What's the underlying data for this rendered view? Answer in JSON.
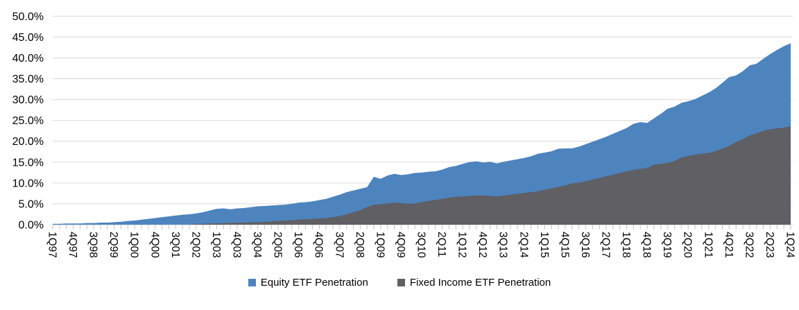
{
  "chart_data": {
    "type": "area",
    "overlapping": true,
    "title": "",
    "xlabel": "",
    "ylabel": "",
    "y_axis": {
      "min": 0,
      "max": 50,
      "step": 5,
      "tick_labels": [
        "0.0%",
        "5.0%",
        "10.0%",
        "15.0%",
        "20.0%",
        "25.0%",
        "30.0%",
        "35.0%",
        "40.0%",
        "45.0%",
        "50.0%"
      ]
    },
    "x_axis": {
      "start": "1Q97",
      "end": "1Q24",
      "n_points": 109,
      "label_every_n_quarters": 3,
      "tick_labels": [
        "1Q97",
        "4Q97",
        "3Q98",
        "2Q99",
        "1Q00",
        "4Q00",
        "3Q01",
        "2Q02",
        "1Q03",
        "4Q03",
        "3Q04",
        "2Q05",
        "1Q06",
        "4Q06",
        "3Q07",
        "2Q08",
        "1Q09",
        "4Q09",
        "3Q10",
        "2Q11",
        "1Q12",
        "4Q12",
        "3Q13",
        "2Q14",
        "1Q15",
        "4Q15",
        "3Q16",
        "2Q17",
        "1Q18",
        "4Q18",
        "3Q19",
        "2Q20",
        "1Q21",
        "4Q21",
        "3Q22",
        "2Q23",
        "1Q24"
      ]
    },
    "grid": true,
    "gridline_color": "#D9D9D9",
    "tick_color": "#BFBFBF",
    "legend_position": "bottom",
    "series": [
      {
        "name": "Equity ETF Penetration",
        "color": "#4D84BE",
        "values": [
          0.2,
          0.2,
          0.3,
          0.3,
          0.3,
          0.4,
          0.4,
          0.5,
          0.5,
          0.6,
          0.7,
          0.9,
          1.0,
          1.2,
          1.4,
          1.6,
          1.8,
          2.0,
          2.2,
          2.4,
          2.5,
          2.7,
          3.0,
          3.4,
          3.8,
          3.9,
          3.7,
          3.9,
          4.0,
          4.2,
          4.4,
          4.5,
          4.6,
          4.7,
          4.8,
          5.0,
          5.3,
          5.4,
          5.6,
          5.9,
          6.2,
          6.7,
          7.2,
          7.8,
          8.2,
          8.6,
          9.0,
          11.5,
          11.0,
          11.8,
          12.2,
          11.9,
          12.1,
          12.4,
          12.5,
          12.7,
          12.8,
          13.2,
          13.8,
          14.1,
          14.6,
          15.0,
          15.2,
          14.9,
          15.1,
          14.7,
          15.1,
          15.4,
          15.7,
          16.0,
          16.4,
          17.0,
          17.3,
          17.6,
          18.2,
          18.3,
          18.3,
          18.7,
          19.3,
          19.9,
          20.5,
          21.1,
          21.8,
          22.5,
          23.2,
          24.2,
          24.6,
          24.4,
          25.5,
          26.6,
          27.8,
          28.3,
          29.2,
          29.6,
          30.1,
          30.9,
          31.7,
          32.7,
          34.0,
          35.4,
          35.8,
          36.8,
          38.2,
          38.6,
          39.8,
          40.9,
          41.9,
          42.8,
          43.5
        ]
      },
      {
        "name": "Fixed Income ETF Penetration",
        "color": "#5F5F64",
        "values": [
          0.0,
          0.0,
          0.0,
          0.0,
          0.0,
          0.0,
          0.0,
          0.0,
          0.0,
          0.0,
          0.0,
          0.0,
          0.0,
          0.0,
          0.0,
          0.0,
          0.0,
          0.0,
          0.0,
          0.0,
          0.0,
          0.1,
          0.2,
          0.3,
          0.3,
          0.4,
          0.4,
          0.5,
          0.5,
          0.6,
          0.6,
          0.7,
          0.8,
          0.9,
          1.0,
          1.1,
          1.2,
          1.3,
          1.4,
          1.5,
          1.6,
          1.8,
          2.1,
          2.5,
          3.0,
          3.5,
          4.2,
          4.8,
          4.9,
          5.1,
          5.3,
          5.2,
          5.0,
          5.1,
          5.4,
          5.7,
          5.9,
          6.2,
          6.5,
          6.7,
          6.8,
          6.9,
          7.0,
          7.0,
          6.9,
          6.8,
          7.0,
          7.2,
          7.4,
          7.6,
          7.8,
          8.0,
          8.4,
          8.7,
          9.1,
          9.4,
          9.9,
          10.1,
          10.4,
          10.8,
          11.2,
          11.6,
          12.0,
          12.4,
          12.8,
          13.1,
          13.4,
          13.6,
          14.4,
          14.6,
          14.8,
          15.3,
          16.1,
          16.5,
          16.8,
          17.0,
          17.2,
          17.6,
          18.2,
          18.9,
          19.8,
          20.5,
          21.4,
          21.9,
          22.5,
          22.9,
          23.1,
          23.3,
          23.6
        ]
      }
    ]
  },
  "legend": {
    "equity_label": "Equity ETF Penetration",
    "fixed_income_label": "Fixed Income ETF Penetration"
  }
}
